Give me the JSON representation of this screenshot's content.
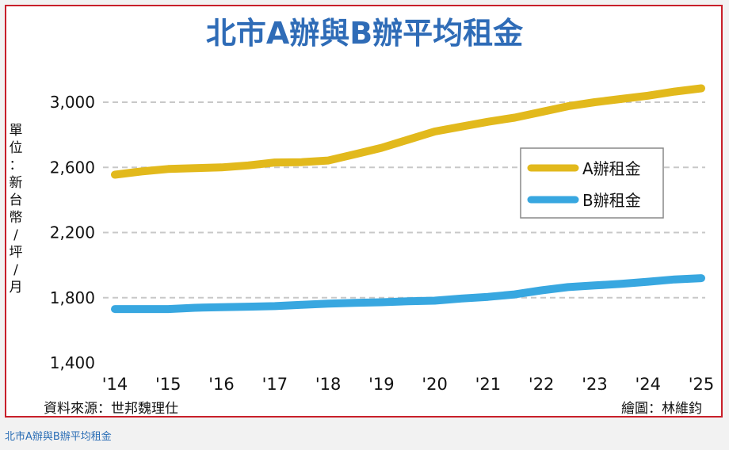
{
  "colors": {
    "frame_border": "#c8202a",
    "title": "#2f6cb7",
    "series_a": "#e2b91c",
    "series_b": "#38a7e0",
    "grid": "#c8c8c8",
    "caption": "#2a6db5"
  },
  "chart_data": {
    "type": "line",
    "title": "北市A辦與B辦平均租金",
    "ylabel": "單位：新台幣/坪/月",
    "xlabel": "",
    "x_tick_labels": [
      "'14",
      "'15",
      "'16",
      "'17",
      "'18",
      "'19",
      "'20",
      "'21",
      "'22",
      "'23",
      "'24",
      "'25"
    ],
    "y_tick_labels": [
      "1,400",
      "1,800",
      "2,200",
      "2,600",
      "3,000"
    ],
    "yticks": [
      1400,
      1800,
      2200,
      2600,
      3000
    ],
    "ylim": [
      1400,
      3100
    ],
    "xlim": [
      2014,
      2025
    ],
    "grid": true,
    "legend_position": "right",
    "series": [
      {
        "name": "A辦租金",
        "color": "#e2b91c",
        "points": [
          [
            2014.0,
            2555
          ],
          [
            2014.5,
            2575
          ],
          [
            2015.0,
            2590
          ],
          [
            2015.5,
            2595
          ],
          [
            2016.0,
            2600
          ],
          [
            2016.5,
            2612
          ],
          [
            2017.0,
            2630
          ],
          [
            2017.5,
            2632
          ],
          [
            2018.0,
            2642
          ],
          [
            2018.5,
            2680
          ],
          [
            2019.0,
            2720
          ],
          [
            2019.5,
            2770
          ],
          [
            2020.0,
            2820
          ],
          [
            2020.5,
            2850
          ],
          [
            2021.0,
            2880
          ],
          [
            2021.5,
            2905
          ],
          [
            2022.0,
            2940
          ],
          [
            2022.5,
            2975
          ],
          [
            2023.0,
            3000
          ],
          [
            2023.5,
            3020
          ],
          [
            2024.0,
            3040
          ],
          [
            2024.5,
            3065
          ],
          [
            2025.0,
            3085
          ]
        ]
      },
      {
        "name": "B辦租金",
        "color": "#38a7e0",
        "points": [
          [
            2014.0,
            1730
          ],
          [
            2014.5,
            1730
          ],
          [
            2015.0,
            1730
          ],
          [
            2015.5,
            1738
          ],
          [
            2016.0,
            1742
          ],
          [
            2016.5,
            1745
          ],
          [
            2017.0,
            1748
          ],
          [
            2017.5,
            1756
          ],
          [
            2018.0,
            1764
          ],
          [
            2018.5,
            1768
          ],
          [
            2019.0,
            1772
          ],
          [
            2019.5,
            1778
          ],
          [
            2020.0,
            1782
          ],
          [
            2020.5,
            1795
          ],
          [
            2021.0,
            1805
          ],
          [
            2021.5,
            1820
          ],
          [
            2022.0,
            1845
          ],
          [
            2022.5,
            1865
          ],
          [
            2023.0,
            1875
          ],
          [
            2023.5,
            1885
          ],
          [
            2024.0,
            1898
          ],
          [
            2024.5,
            1912
          ],
          [
            2025.0,
            1920
          ]
        ]
      }
    ]
  },
  "footer": {
    "source": "資料來源：世邦魏理仕",
    "credit": "繪圖：林維鈞"
  },
  "caption": "北市A辦與B辦平均租金"
}
